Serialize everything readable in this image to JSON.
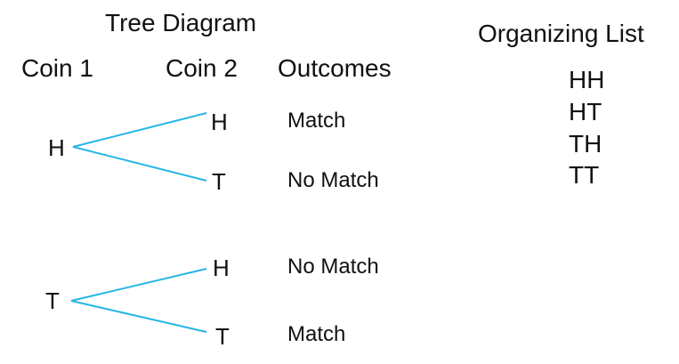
{
  "diagram": {
    "title": "Tree Diagram",
    "headers": {
      "coin1": "Coin 1",
      "coin2": "Coin 2",
      "outcomes": "Outcomes"
    },
    "branch_color": "#27B6E6",
    "tree": {
      "upper": {
        "root": "H",
        "top_leaf": "H",
        "bottom_leaf": "T",
        "top_outcome": "Match",
        "bottom_outcome": "No Match"
      },
      "lower": {
        "root": "T",
        "top_leaf": "H",
        "bottom_leaf": "T",
        "top_outcome": "No Match",
        "bottom_outcome": "Match"
      }
    }
  },
  "organizing_list": {
    "title": "Organizing List",
    "items": [
      "HH",
      "HT",
      "TH",
      "TT"
    ]
  }
}
